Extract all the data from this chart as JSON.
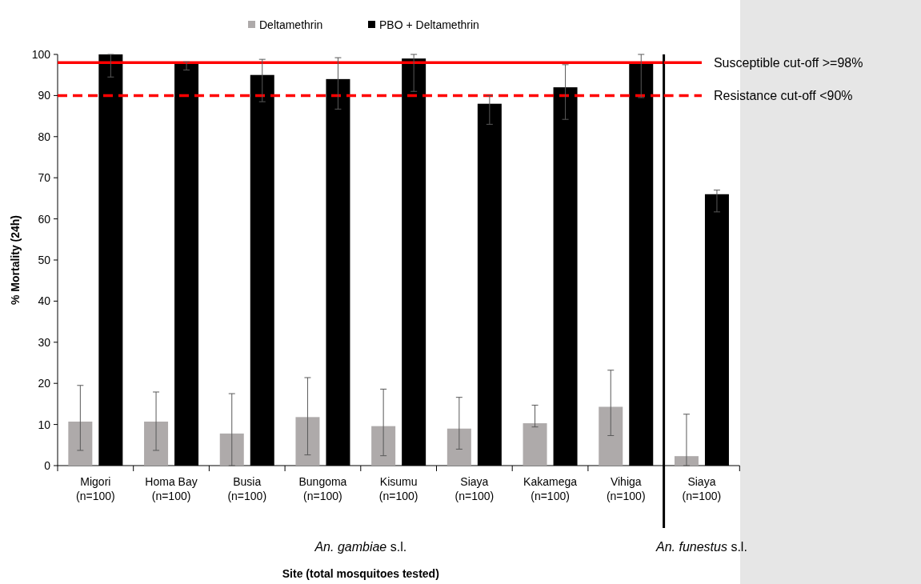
{
  "chart_data": [
    {
      "type": "bar",
      "ylabel": "% Mortality (24h)",
      "categories": [
        "Migori\n(n=100)",
        "Homa Bay\n(n=100)",
        "Busia\n(n=100)",
        "Bungoma\n(n=100)",
        "Kisumu\n(n=100)",
        "Siaya\n(n=100)",
        "Kakamega\n(n=100)",
        "Vihiga\n(n=100)"
      ],
      "series": [
        {
          "name": "Deltamethrin",
          "color": "#aeaaaa",
          "values": [
            10.7,
            10.7,
            7.8,
            11.8,
            9.6,
            9.0,
            10.3,
            14.3
          ],
          "errors": [
            [
              3.7,
              19.5
            ],
            [
              3.7,
              17.9
            ],
            [
              0,
              17.5
            ],
            [
              2.6,
              21.4
            ],
            [
              2.4,
              18.6
            ],
            [
              4.0,
              16.6
            ],
            [
              9.4,
              14.7
            ],
            [
              7.3,
              23.2
            ]
          ]
        },
        {
          "name": "PBO + Deltamethrin",
          "color": "#000000",
          "values": [
            100,
            98,
            95,
            94,
            99,
            88,
            92,
            98
          ],
          "errors": [
            [
              94.5,
              100
            ],
            [
              96.2,
              98.2
            ],
            [
              88.5,
              98.8
            ],
            [
              86.7,
              99.2
            ],
            [
              91,
              100
            ],
            [
              83,
              90
            ],
            [
              84.2,
              97.5
            ],
            [
              89.5,
              100
            ]
          ]
        }
      ],
      "ylim": [
        0,
        100
      ],
      "yticks": [
        0,
        10,
        20,
        30,
        40,
        50,
        60,
        70,
        80,
        90,
        100
      ],
      "legend": "top",
      "ref_lines": [
        {
          "axis": "y",
          "value": 98,
          "color": "#ff0000",
          "line_style": "solid"
        },
        {
          "axis": "y",
          "value": 90,
          "color": "#ff0000",
          "line_style": "dashed"
        }
      ],
      "annotations": [
        "An. gambiae s.l.",
        "Site (total mosquitoes tested)"
      ]
    },
    {
      "type": "bar",
      "categories": [
        "Siaya\n(n=100)"
      ],
      "series": [
        {
          "color": "#aeaaaa",
          "values": [
            2.3
          ],
          "errors": [
            [
              0,
              12.5
            ]
          ]
        },
        {
          "color": "#000000",
          "values": [
            66
          ],
          "errors": [
            [
              61.7,
              67
            ]
          ]
        }
      ],
      "ylim": [
        0,
        100
      ],
      "yticks": [
        0,
        10,
        20,
        30,
        40,
        50,
        60,
        70,
        80,
        90,
        100
      ],
      "tick_labels": "x",
      "ref_lines": [
        {
          "axis": "y",
          "value": 98,
          "label": "Susceptible cut-off >=98%",
          "color": "#ff0000",
          "line_style": "solid"
        },
        {
          "axis": "y",
          "value": 90,
          "label": "Resistance cut-off <90%",
          "color": "#ff0000",
          "line_style": "dashed"
        }
      ],
      "annotations": [
        "An. funestus s.l."
      ]
    }
  ]
}
